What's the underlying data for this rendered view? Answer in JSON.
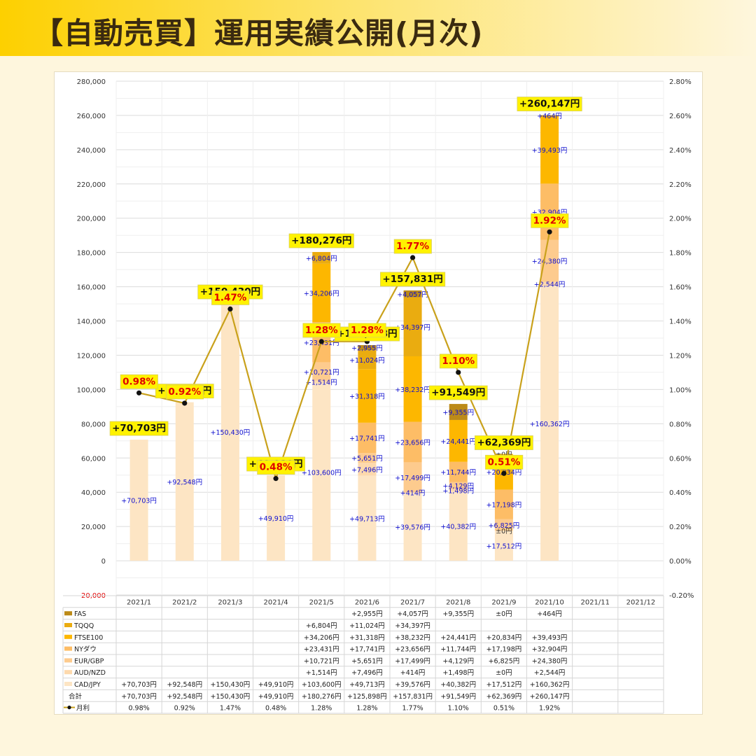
{
  "header": {
    "title": "【自動売買】運用実績公開(月次)"
  },
  "chart_data": {
    "type": "bar",
    "categories": [
      "2021/1",
      "2021/2",
      "2021/3",
      "2021/4",
      "2021/5",
      "2021/6",
      "2021/7",
      "2021/8",
      "2021/9",
      "2021/10",
      "2021/11",
      "2021/12"
    ],
    "y_left": {
      "min": -20000,
      "max": 280000,
      "step": 20000,
      "ticks": [
        "280,000",
        "260,000",
        "240,000",
        "220,000",
        "200,000",
        "180,000",
        "160,000",
        "140,000",
        "120,000",
        "100,000",
        "80,000",
        "60,000",
        "40,000",
        "20,000",
        "0",
        "-20,000"
      ]
    },
    "y_right": {
      "min": -0.2,
      "max": 2.8,
      "step": 0.2,
      "ticks": [
        "2.80%",
        "2.60%",
        "2.40%",
        "2.20%",
        "2.00%",
        "1.80%",
        "1.60%",
        "1.40%",
        "1.20%",
        "1.00%",
        "0.80%",
        "0.60%",
        "0.40%",
        "0.20%",
        "0.00%",
        "-0.20%"
      ]
    },
    "series": [
      {
        "name": "CAD/JPY",
        "color": "#fde5c4",
        "values": [
          70703,
          92548,
          150430,
          49910,
          103600,
          49713,
          39576,
          40382,
          17512,
          160362,
          null,
          null
        ],
        "labels": [
          "+70,703円",
          "+92,548円",
          "+150,430円",
          "+49,910円",
          "+103,600円",
          "+49,713円",
          "+39,576円",
          "+40,382円",
          "+17,512円",
          "+160,362円",
          "",
          ""
        ]
      },
      {
        "name": "AUD/NZD",
        "color": "#fdd9ad",
        "values": [
          null,
          null,
          null,
          null,
          1514,
          7496,
          414,
          1498,
          0,
          2544,
          null,
          null
        ],
        "labels": [
          "",
          "",
          "",
          "",
          "+1,514円",
          "+7,496円",
          "+414円",
          "+1,498円",
          "±0円",
          "+2,544円",
          "",
          ""
        ]
      },
      {
        "name": "EUR/GBP",
        "color": "#fdcb8e",
        "values": [
          null,
          null,
          null,
          null,
          10721,
          5651,
          17499,
          4129,
          6825,
          24380,
          null,
          null
        ],
        "labels": [
          "",
          "",
          "",
          "",
          "+10,721円",
          "+5,651円",
          "+17,499円",
          "+4,129円",
          "+6,825円",
          "+24,380円",
          "",
          ""
        ]
      },
      {
        "name": "NYダウ",
        "color": "#fdbd66",
        "values": [
          null,
          null,
          null,
          null,
          23431,
          17741,
          23656,
          11744,
          17198,
          32904,
          null,
          null
        ],
        "labels": [
          "",
          "",
          "",
          "",
          "+23,431円",
          "+17,741円",
          "+23,656円",
          "+11,744円",
          "+17,198円",
          "+32,904円",
          "",
          ""
        ]
      },
      {
        "name": "FTSE100",
        "color": "#fdb700",
        "values": [
          null,
          null,
          null,
          null,
          34206,
          31318,
          38232,
          24441,
          20834,
          39493,
          null,
          null
        ],
        "labels": [
          "",
          "",
          "",
          "",
          "+34,206円",
          "+31,318円",
          "+38,232円",
          "+24,441円",
          "+20,834円",
          "+39,493円",
          "",
          ""
        ]
      },
      {
        "name": "TQQQ",
        "color": "#eaac10",
        "values": [
          null,
          null,
          null,
          null,
          6804,
          11024,
          34397,
          null,
          null,
          null,
          null,
          null
        ],
        "labels": [
          "",
          "",
          "",
          "",
          "+6,804円",
          "+11,024円",
          "+34,397円",
          "",
          "",
          "",
          "",
          ""
        ]
      },
      {
        "name": "FAS",
        "color": "#bc8a18",
        "values": [
          null,
          null,
          null,
          null,
          null,
          2955,
          4057,
          9355,
          0,
          464,
          null,
          null
        ],
        "labels": [
          "",
          "",
          "",
          "",
          "",
          "+2,955円",
          "+4,057円",
          "+9,355円",
          "±0円",
          "+464円",
          "",
          ""
        ]
      }
    ],
    "totals": {
      "name": "合計",
      "values": [
        70703,
        92548,
        150430,
        49910,
        180276,
        125898,
        157831,
        91549,
        62369,
        260147,
        null,
        null
      ],
      "labels": [
        "+70,703円",
        "+92,548円",
        "+150,430円",
        "+49,910円",
        "+180,276円",
        "+125,898円",
        "+157,831円",
        "+91,549円",
        "+62,369円",
        "+260,147円",
        "",
        ""
      ]
    },
    "line": {
      "name": "月利",
      "color": "#c9a11b",
      "axis": "right",
      "values": [
        0.98,
        0.92,
        1.47,
        0.48,
        1.28,
        1.28,
        1.77,
        1.1,
        0.51,
        1.92,
        null,
        null
      ],
      "labels": [
        "0.98%",
        "0.92%",
        "1.47%",
        "0.48%",
        "1.28%",
        "1.28%",
        "1.77%",
        "1.10%",
        "0.51%",
        "1.92%",
        "",
        ""
      ]
    },
    "grid": true,
    "legend": "data-table"
  }
}
